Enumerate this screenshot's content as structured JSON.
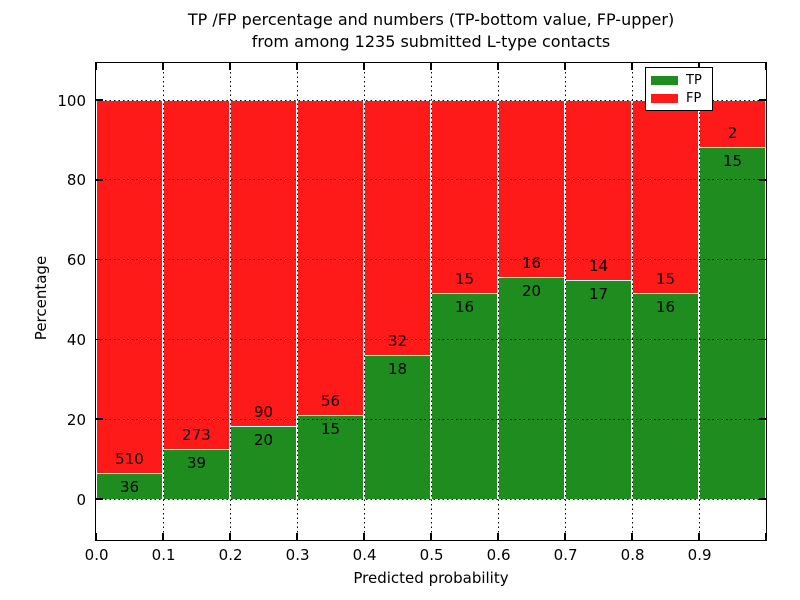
{
  "chart_data": {
    "type": "bar",
    "stacked": true,
    "normalized_each_bar_to_percent": true,
    "title": "TP /FP percentage and numbers (TP-bottom value, FP-upper)",
    "subtitle": "from among 1235 submitted L-type contacts",
    "xlabel": "Predicted probability",
    "ylabel": "Percentage",
    "total_contacts": 1235,
    "categories": [
      "0.0-0.1",
      "0.1-0.2",
      "0.2-0.3",
      "0.3-0.4",
      "0.4-0.5",
      "0.5-0.6",
      "0.6-0.7",
      "0.7-0.8",
      "0.8-0.9",
      "0.9-1.0"
    ],
    "x_tick_labels": [
      "0.0",
      "0.1",
      "0.2",
      "0.3",
      "0.4",
      "0.5",
      "0.6",
      "0.7",
      "0.8",
      "0.9"
    ],
    "y_tick_labels": [
      "0",
      "20",
      "40",
      "60",
      "80",
      "100"
    ],
    "y_tick_values": [
      0,
      20,
      40,
      60,
      80,
      100
    ],
    "xlim": [
      0.0,
      1.0
    ],
    "ylim": [
      -10,
      110
    ],
    "grid": {
      "style": "dotted",
      "color": "#000000",
      "horizontal": true,
      "vertical": true
    },
    "series": [
      {
        "name": "TP",
        "color": "#1f8c1f",
        "values": [
          36,
          39,
          20,
          15,
          18,
          16,
          20,
          17,
          16,
          15
        ]
      },
      {
        "name": "FP",
        "color": "#ff1a1a",
        "values": [
          510,
          273,
          90,
          56,
          32,
          15,
          16,
          14,
          15,
          2
        ]
      }
    ],
    "tp_percent_of_bin": [
      6.6,
      12.5,
      18.2,
      21.1,
      36.0,
      51.6,
      55.6,
      54.8,
      51.6,
      88.2
    ],
    "bar_value_labels": "FP count printed just above the TP/FP boundary, TP count just below it",
    "legend": {
      "position": "upper right",
      "entries": [
        {
          "label": "TP",
          "color": "#1f8c1f"
        },
        {
          "label": "FP",
          "color": "#ff1a1a"
        }
      ]
    }
  }
}
